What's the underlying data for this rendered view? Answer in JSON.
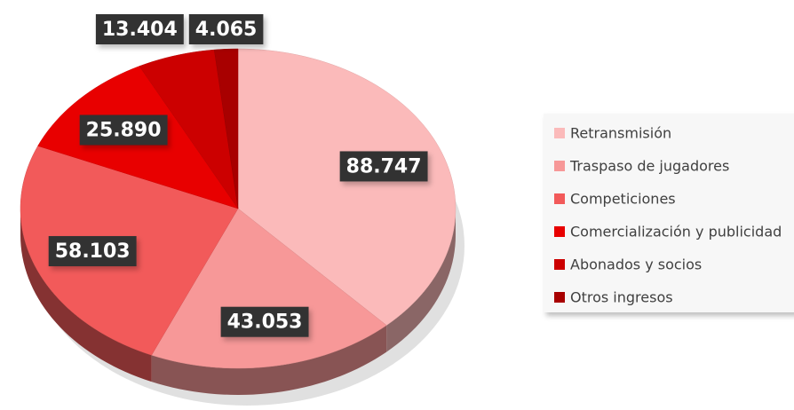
{
  "chart_data": {
    "type": "pie",
    "categories": [
      "Retransmisión",
      "Traspaso de jugadores",
      "Competiciones",
      "Comercialización y publicidad",
      "Abonados y socios",
      "Otros ingresos"
    ],
    "values": [
      88747,
      43053,
      58103,
      25890,
      13404,
      4065
    ],
    "value_labels": [
      "88.747",
      "43.053",
      "58.103",
      "25.890",
      "13.404",
      "4.065"
    ],
    "colors": [
      "#fbbaba",
      "#f79898",
      "#f25a5a",
      "#e80000",
      "#cc0000",
      "#a80000"
    ],
    "legend": "right"
  }
}
